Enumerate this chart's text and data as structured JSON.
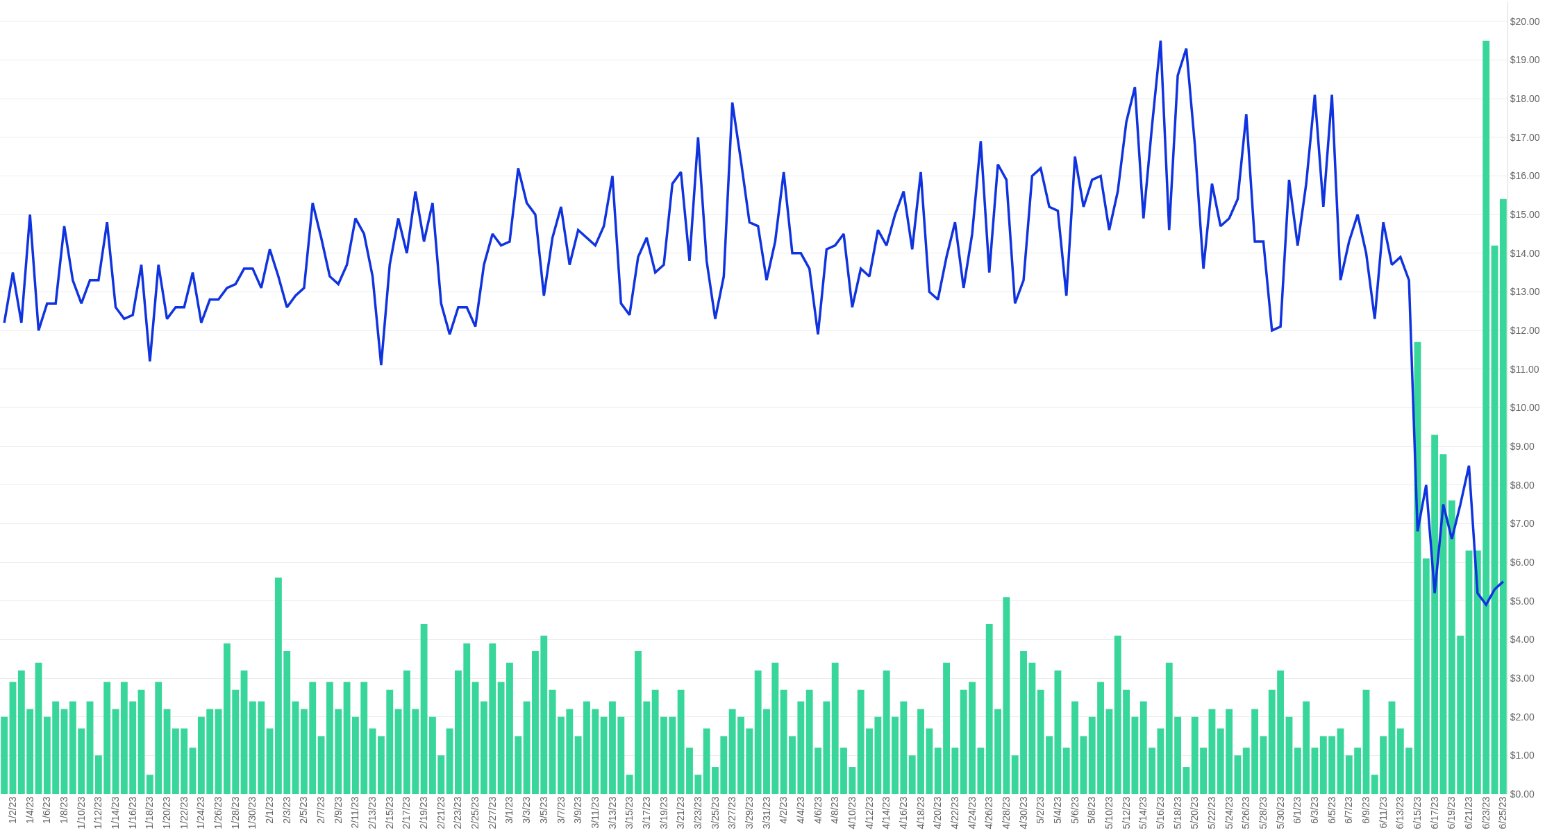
{
  "chart_data": {
    "type": "bar",
    "categories": [
      null,
      "1/2/23",
      null,
      "1/4/23",
      null,
      "1/6/23",
      null,
      "1/8/23",
      null,
      "1/10/23",
      null,
      "1/12/23",
      null,
      "1/14/23",
      null,
      "1/16/23",
      null,
      "1/18/23",
      null,
      "1/20/23",
      null,
      "1/22/23",
      null,
      "1/24/23",
      null,
      "1/26/23",
      null,
      "1/28/23",
      null,
      "1/30/23",
      null,
      "2/1/23",
      null,
      "2/3/23",
      null,
      "2/5/23",
      null,
      "2/7/23",
      null,
      "2/9/23",
      null,
      "2/11/23",
      null,
      "2/13/23",
      null,
      "2/15/23",
      null,
      "2/17/23",
      null,
      "2/19/23",
      null,
      "2/21/23",
      null,
      "2/23/23",
      null,
      "2/25/23",
      null,
      "2/27/23",
      null,
      "3/1/23",
      null,
      "3/3/23",
      null,
      "3/5/23",
      null,
      "3/7/23",
      null,
      "3/9/23",
      null,
      "3/11/23",
      null,
      "3/13/23",
      null,
      "3/15/23",
      null,
      "3/17/23",
      null,
      "3/19/23",
      null,
      "3/21/23",
      null,
      "3/23/23",
      null,
      "3/25/23",
      null,
      "3/27/23",
      null,
      "3/29/23",
      null,
      "3/31/23",
      null,
      "4/2/23",
      null,
      "4/4/23",
      null,
      "4/6/23",
      null,
      "4/8/23",
      null,
      "4/10/23",
      null,
      "4/12/23",
      null,
      "4/14/23",
      null,
      "4/16/23",
      null,
      "4/18/23",
      null,
      "4/20/23",
      null,
      "4/22/23",
      null,
      "4/24/23",
      null,
      "4/26/23",
      null,
      "4/28/23",
      null,
      "4/30/23",
      null,
      "5/2/23",
      null,
      "5/4/23",
      null,
      "5/6/23",
      null,
      "5/8/23",
      null,
      "5/10/23",
      null,
      "5/12/23",
      null,
      "5/14/23",
      null,
      "5/16/23",
      null,
      "5/18/23",
      null,
      "5/20/23",
      null,
      "5/22/23",
      null,
      "5/24/23",
      null,
      "5/26/23",
      null,
      "5/28/23",
      null,
      "5/30/23",
      null,
      "6/1/23",
      null,
      "6/3/23",
      null,
      "6/5/23",
      null,
      "6/7/23",
      null,
      "6/9/23",
      null,
      "6/11/23",
      null,
      "6/13/23",
      null,
      "6/15/23",
      null,
      "6/17/23",
      null,
      "6/19/23",
      null,
      "6/21/23",
      null,
      "6/23/23",
      null,
      "6/25/23"
    ],
    "series": [
      {
        "color": "#38d69a",
        "values": [
          2.0,
          2.9,
          3.2,
          2.2,
          3.4,
          2.0,
          2.4,
          2.2,
          2.4,
          1.7,
          2.4,
          1.0,
          2.9,
          2.2,
          2.9,
          2.4,
          2.7,
          0.5,
          2.9,
          2.2,
          1.7,
          1.7,
          1.2,
          2.0,
          2.2,
          2.2,
          3.9,
          2.7,
          3.2,
          2.4,
          2.4,
          1.7,
          5.6,
          3.7,
          2.4,
          2.2,
          2.9,
          1.5,
          2.9,
          2.2,
          2.9,
          2.0,
          2.9,
          1.7,
          1.5,
          2.7,
          2.2,
          3.2,
          2.2,
          4.4,
          2.0,
          1.0,
          1.7,
          3.2,
          3.9,
          2.9,
          2.4,
          3.9,
          2.9,
          3.4,
          1.5,
          2.4,
          3.7,
          4.1,
          2.7,
          2.0,
          2.2,
          1.5,
          2.4,
          2.2,
          2.0,
          2.4,
          2.0,
          0.5,
          3.7,
          2.4,
          2.7,
          2.0,
          2.0,
          2.7,
          1.2,
          0.5,
          1.7,
          0.7,
          1.5,
          2.2,
          2.0,
          1.7,
          3.2,
          2.2,
          3.4,
          2.7,
          1.5,
          2.4,
          2.7,
          1.2,
          2.4,
          3.4,
          1.2,
          0.7,
          2.7,
          1.7,
          2.0,
          3.2,
          2.0,
          2.4,
          1.0,
          2.2,
          1.7,
          1.2,
          3.4,
          1.2,
          2.7,
          2.9,
          1.2,
          4.4,
          2.2,
          5.1,
          1.0,
          3.7,
          3.4,
          2.7,
          1.5,
          3.2,
          1.2,
          2.4,
          1.5,
          2.0,
          2.9,
          2.2,
          4.1,
          2.7,
          2.0,
          2.4,
          1.2,
          1.7,
          3.4,
          2.0,
          0.7,
          2.0,
          1.2,
          2.2,
          1.7,
          2.2,
          1.0,
          1.2,
          2.2,
          1.5,
          2.7,
          3.2,
          2.0,
          1.2,
          2.4,
          1.2,
          1.5,
          1.5,
          1.7,
          1.0,
          1.2,
          2.7,
          0.5,
          1.5,
          2.4,
          1.7,
          1.2,
          11.7,
          6.1,
          9.3,
          8.8,
          7.6,
          4.1,
          6.3,
          6.3,
          19.5,
          14.2,
          15.4
        ]
      },
      {
        "type": "line",
        "color": "#1033e0",
        "values": [
          12.2,
          13.5,
          12.2,
          15.0,
          12.0,
          12.7,
          12.7,
          14.7,
          13.3,
          12.7,
          13.3,
          13.3,
          14.8,
          12.6,
          12.3,
          12.4,
          13.7,
          11.2,
          13.7,
          12.3,
          12.6,
          12.6,
          13.5,
          12.2,
          12.8,
          12.8,
          13.1,
          13.2,
          13.6,
          13.6,
          13.1,
          14.1,
          13.4,
          12.6,
          12.9,
          13.1,
          15.3,
          14.4,
          13.4,
          13.2,
          13.7,
          14.9,
          14.5,
          13.4,
          11.1,
          13.7,
          14.9,
          14.0,
          15.6,
          14.3,
          15.3,
          12.7,
          11.9,
          12.6,
          12.6,
          12.1,
          13.7,
          14.5,
          14.2,
          14.3,
          16.2,
          15.3,
          15.0,
          12.9,
          14.4,
          15.2,
          13.7,
          14.6,
          14.4,
          14.2,
          14.7,
          16.0,
          12.7,
          12.4,
          13.9,
          14.4,
          13.5,
          13.7,
          15.8,
          16.1,
          13.8,
          17.0,
          13.8,
          12.3,
          13.4,
          17.9,
          16.4,
          14.8,
          14.7,
          13.3,
          14.3,
          16.1,
          14.0,
          14.0,
          13.6,
          11.9,
          14.1,
          14.2,
          14.5,
          12.6,
          13.6,
          13.4,
          14.6,
          14.2,
          15.0,
          15.6,
          14.1,
          16.1,
          13.0,
          12.8,
          13.9,
          14.8,
          13.1,
          14.5,
          16.9,
          13.5,
          16.3,
          15.9,
          12.7,
          13.3,
          16.0,
          16.2,
          15.2,
          15.1,
          12.9,
          16.5,
          15.2,
          15.9,
          16.0,
          14.6,
          15.6,
          17.4,
          18.3,
          14.9,
          17.3,
          19.5,
          14.6,
          18.6,
          19.3,
          16.8,
          13.6,
          15.8,
          14.7,
          14.9,
          15.4,
          17.6,
          14.3,
          14.3,
          12.0,
          12.1,
          15.9,
          14.2,
          15.8,
          18.1,
          15.2,
          18.1,
          13.3,
          14.3,
          15.0,
          14.0,
          12.3,
          14.8,
          13.7,
          13.9,
          13.3,
          6.8,
          8.0,
          5.2,
          7.5,
          6.6,
          7.5,
          8.5,
          5.2,
          4.9,
          5.3,
          5.5
        ]
      }
    ],
    "ylim": [
      0,
      20.5
    ],
    "yticks": [
      {
        "value": 0,
        "label": "$0.00"
      },
      {
        "value": 1,
        "label": "$1.00"
      },
      {
        "value": 2,
        "label": "$2.00"
      },
      {
        "value": 3,
        "label": "$3.00"
      },
      {
        "value": 4,
        "label": "$4.00"
      },
      {
        "value": 5,
        "label": "$5.00"
      },
      {
        "value": 6,
        "label": "$6.00"
      },
      {
        "value": 7,
        "label": "$7.00"
      },
      {
        "value": 8,
        "label": "$8.00"
      },
      {
        "value": 9,
        "label": "$9.00"
      },
      {
        "value": 10,
        "label": "$10.00"
      },
      {
        "value": 11,
        "label": "$11.00"
      },
      {
        "value": 12,
        "label": "$12.00"
      },
      {
        "value": 13,
        "label": "$13.00"
      },
      {
        "value": 14,
        "label": "$14.00"
      },
      {
        "value": 15,
        "label": "$15.00"
      },
      {
        "value": 16,
        "label": "$16.00"
      },
      {
        "value": 17,
        "label": "$17.00"
      },
      {
        "value": 18,
        "label": "$18.00"
      },
      {
        "value": 19,
        "label": "$19.00"
      },
      {
        "value": 20,
        "label": "$20.00"
      }
    ],
    "grid": "y",
    "line_style": "solid"
  }
}
